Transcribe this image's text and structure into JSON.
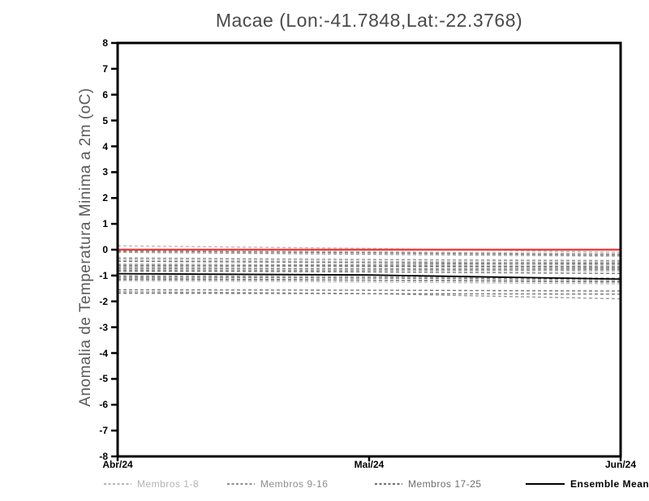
{
  "page": {
    "background": "#ffffff"
  },
  "chart_data": {
    "type": "line",
    "title": "Macae (Lon:-41.7848,Lat:-22.3768)",
    "ylabel": "Anomalia de Temperatura Minima a 2m (oC)",
    "xlabel": "",
    "ylim": [
      -8,
      8
    ],
    "ytick_step": 1,
    "yticks": [
      8,
      7,
      6,
      5,
      4,
      3,
      2,
      1,
      0,
      -1,
      -2,
      -3,
      -4,
      -5,
      -6,
      -7,
      -8
    ],
    "xticks": [
      "Abr/24",
      "Mai/24",
      "Jun/24"
    ],
    "grid": false,
    "frame_color": "#000000",
    "zero_line": {
      "name": "zero-reference",
      "color": "#ee4040",
      "values": [
        0,
        0,
        0
      ]
    },
    "ensemble_mean": {
      "name": "Ensemble Mean",
      "color": "#000000",
      "values": [
        -0.93,
        -0.98,
        -1.14
      ]
    },
    "groups": [
      {
        "name": "Membros 1-8",
        "color": "#bcbcbc",
        "members": [
          [
            0.15,
            0.05,
            -0.1
          ],
          [
            -0.05,
            -0.08,
            -0.15
          ],
          [
            -0.3,
            -0.38,
            -0.45
          ],
          [
            -0.42,
            -0.45,
            -0.5
          ],
          [
            -0.55,
            -0.58,
            -0.6
          ],
          [
            -0.7,
            -0.62,
            -0.55
          ],
          [
            -0.85,
            -0.8,
            -0.72
          ],
          [
            -1.2,
            -1.25,
            -1.32
          ]
        ]
      },
      {
        "name": "Membros 9-16",
        "color": "#9b9b9b",
        "members": [
          [
            -0.1,
            -0.18,
            -0.25
          ],
          [
            -0.35,
            -0.38,
            -0.42
          ],
          [
            -0.6,
            -0.66,
            -0.7
          ],
          [
            -0.65,
            -0.58,
            -0.5
          ],
          [
            -0.78,
            -0.8,
            -0.82
          ],
          [
            -1.0,
            -1.05,
            -1.1
          ],
          [
            -1.1,
            -1.18,
            -1.26
          ],
          [
            -1.62,
            -1.7,
            -1.9
          ]
        ]
      },
      {
        "name": "Membros 17-25",
        "color": "#787878",
        "members": [
          [
            -0.05,
            -0.12,
            -0.2
          ],
          [
            -0.45,
            -0.5,
            -0.55
          ],
          [
            -0.6,
            -0.63,
            -0.66
          ],
          [
            -0.72,
            -0.74,
            -0.76
          ],
          [
            -0.82,
            -0.86,
            -0.92
          ],
          [
            -1.05,
            -1.1,
            -1.15
          ],
          [
            -1.15,
            -1.18,
            -1.22
          ],
          [
            -1.55,
            -1.57,
            -1.6
          ],
          [
            -1.68,
            -1.7,
            -1.72
          ]
        ]
      }
    ],
    "legend": [
      {
        "label": "Membros 1-8",
        "style": "dashed",
        "color": "#b3b3b3"
      },
      {
        "label": "Membros 9-16",
        "style": "dashed",
        "color": "#8f8f8f"
      },
      {
        "label": "Membros 17-25",
        "style": "dashed",
        "color": "#6e6e6e"
      },
      {
        "label": "Ensemble Mean",
        "style": "solid",
        "color": "#000000"
      }
    ],
    "legend_x_positions": [
      128,
      280,
      462,
      648
    ]
  }
}
